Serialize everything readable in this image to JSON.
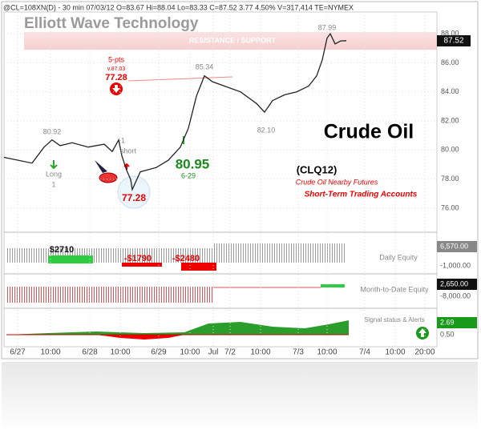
{
  "chart_data": {
    "type": "line",
    "header": "@CL=108XN(D) - 30 min   07/03/12   O=83.67   Hi=88.04   Lo=83.33   C=87.52   3.77   4.50%   V=317,414   TE=NYMEX",
    "title": "Elliott Wave Technology",
    "band_label": "RESISTANCE / SUPPORT",
    "last_price": "87.52",
    "color": "#222222",
    "grid": true,
    "x": [
      0,
      7,
      10,
      12,
      14,
      17,
      21,
      25,
      27,
      28.6,
      29.4,
      30.6,
      31.6,
      32,
      34,
      38,
      41,
      44,
      46,
      48,
      50,
      52,
      55,
      59,
      63,
      65,
      67,
      70,
      73,
      76,
      78,
      79.4,
      80.6,
      81.4,
      82.6,
      84,
      85.4
    ],
    "values": [
      79.5,
      79.1,
      80.2,
      80.7,
      80.3,
      80.5,
      80.2,
      80.4,
      79.9,
      80.7,
      79.6,
      78.6,
      77.97,
      77.28,
      78.5,
      78.8,
      79.3,
      80.2,
      81.5,
      83.7,
      85.1,
      84.7,
      84.4,
      84.0,
      83.2,
      82.6,
      83.4,
      83.8,
      84.0,
      84.4,
      85.1,
      86.2,
      87.7,
      87.99,
      87.3,
      87.5,
      87.52
    ],
    "xlim": [
      0,
      108
    ],
    "ylim": [
      74.35,
      89.49
    ],
    "xticks": [
      {
        "value": 3.4,
        "label": "6/27"
      },
      {
        "value": 11.6,
        "label": "10:00"
      },
      {
        "value": 21.4,
        "label": "6/28"
      },
      {
        "value": 29,
        "label": "10:00"
      },
      {
        "value": 38.6,
        "label": "6/29"
      },
      {
        "value": 46.4,
        "label": "10:00"
      },
      {
        "value": 52.2,
        "label": "Jul"
      },
      {
        "value": 56.4,
        "label": "7/2"
      },
      {
        "value": 64,
        "label": "10:00"
      },
      {
        "value": 73.4,
        "label": "7/3"
      },
      {
        "value": 80.6,
        "label": "10:00"
      },
      {
        "value": 90,
        "label": "7/4"
      },
      {
        "value": 97.6,
        "label": "10:00"
      },
      {
        "value": 105,
        "label": "20:00"
      }
    ],
    "yticks": [
      {
        "value": 88,
        "label": "88.00"
      },
      {
        "value": 86,
        "label": "86.00"
      },
      {
        "value": 84,
        "label": "84.00"
      },
      {
        "value": 82,
        "label": "82.00"
      },
      {
        "value": 80,
        "label": "80.00"
      },
      {
        "value": 78,
        "label": "78.00"
      },
      {
        "value": 76,
        "label": "76.00"
      }
    ],
    "annotations": [
      "5-pts",
      "v.87.03",
      "77.28",
      "85.34",
      "80.92",
      "82.10",
      "87.99",
      "-1",
      "short",
      "Long",
      "1",
      "80.95",
      "6-29",
      "Crude Oil",
      "(CLQ12)",
      "Crude Oil Nearby Futures",
      "Short-Term Trading Accounts",
      "77.28",
      "$2710",
      "-$1790",
      "-$2480",
      "Daily Equity",
      "Month-to-Date Equity",
      "Signal status & Alerts"
    ],
    "panel_axis_labels": [
      "6,570.00",
      "-1,000.00",
      "2,650.00",
      "-8,000.00",
      "2.69",
      "0.50"
    ]
  }
}
